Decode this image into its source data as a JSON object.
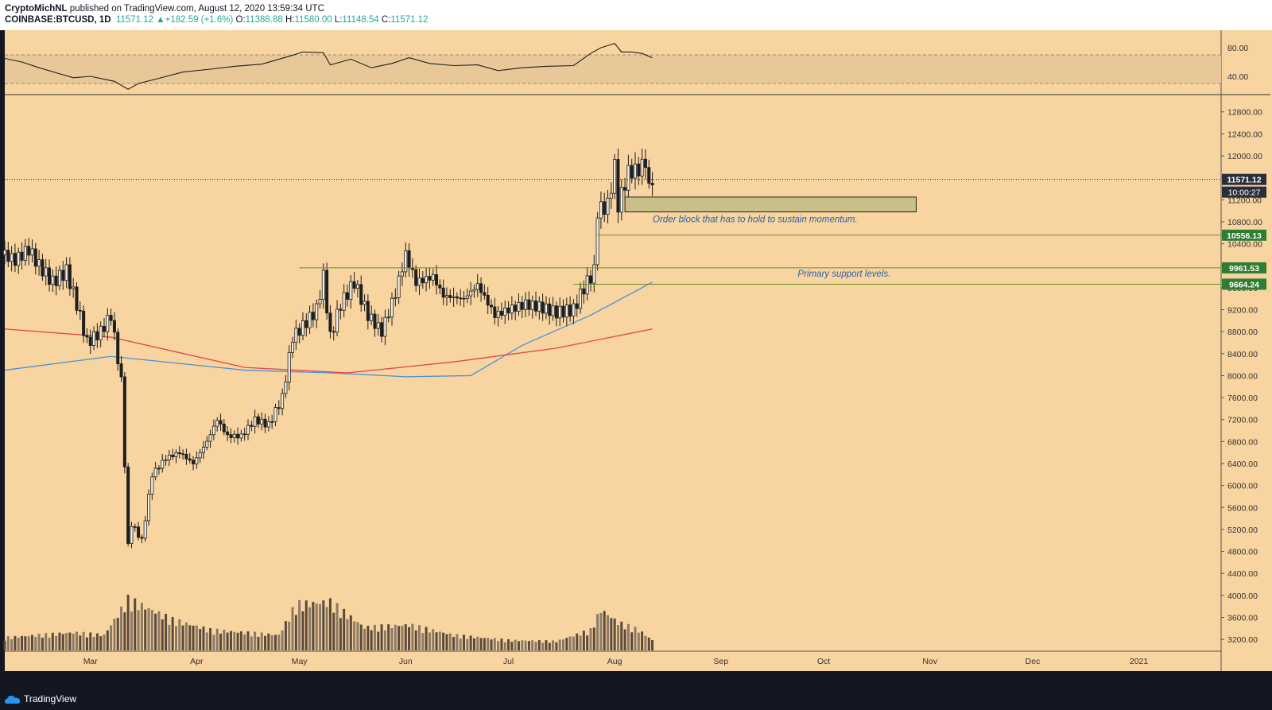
{
  "header": {
    "author": "CryptoMichNL",
    "published": "published on TradingView.com, August 12, 2020 13:59:34 UTC",
    "symbol": "COINBASE:BTCUSD, 1D",
    "last": "11571.12",
    "change": "+182.59 (+1.6%)",
    "open_label": "O:",
    "open": "11388.88",
    "high_label": "H:",
    "high": "11580.00",
    "low_label": "L:",
    "low": "11148.54",
    "close_label": "C:",
    "close": "11571.12"
  },
  "footer": {
    "brand": "TradingView"
  },
  "colors": {
    "background": "#f8d4a0",
    "candle": "#1e1e1e",
    "volume": "#5a4a3a",
    "ma_blue": "#4a90d9",
    "ma_red": "#e04848",
    "support_line": "#6b8e23",
    "badge_green": "#2e7d32",
    "badge_dark": "#2a2e39",
    "order_block": "#c8c088",
    "annotation": "#2962a8"
  },
  "chart_data": {
    "type": "candlestick",
    "symbol": "COINBASE:BTCUSD",
    "interval": "1D",
    "x_ticks": [
      "Mar",
      "Apr",
      "May",
      "Jun",
      "Jul",
      "Aug",
      "Sep",
      "Oct",
      "Nov",
      "Dec",
      "2021"
    ],
    "x_tick_dates": [
      "2020-03-01",
      "2020-04-01",
      "2020-05-01",
      "2020-06-01",
      "2020-07-01",
      "2020-08-01",
      "2020-09-01",
      "2020-10-01",
      "2020-11-01",
      "2020-12-01",
      "2021-01-01"
    ],
    "x_range": [
      "2020-02-05",
      "2021-01-25"
    ],
    "ylim": [
      3000,
      13100
    ],
    "y_ticks": [
      "12800.00",
      "12400.00",
      "12000.00",
      "11600.00",
      "11200.00",
      "10800.00",
      "10400.00",
      "10000.00",
      "9600.00",
      "9200.00",
      "8800.00",
      "8400.00",
      "8000.00",
      "7600.00",
      "7200.00",
      "6800.00",
      "6400.00",
      "6000.00",
      "5600.00",
      "5200.00",
      "4800.00",
      "4400.00",
      "4000.00",
      "3600.00",
      "3200.00"
    ],
    "y_tick_values": [
      12800,
      12400,
      12000,
      11600,
      11200,
      10800,
      10400,
      10000,
      9600,
      9200,
      8800,
      8400,
      8000,
      7600,
      7200,
      6800,
      6400,
      6000,
      5600,
      5200,
      4800,
      4400,
      4000,
      3600,
      3200
    ],
    "price_points": [
      {
        "date": "2020-02-05",
        "price": 10200
      },
      {
        "date": "2020-02-08",
        "price": 10100
      },
      {
        "date": "2020-02-12",
        "price": 10300
      },
      {
        "date": "2020-02-15",
        "price": 10000
      },
      {
        "date": "2020-02-19",
        "price": 9700
      },
      {
        "date": "2020-02-23",
        "price": 9900
      },
      {
        "date": "2020-02-26",
        "price": 9300
      },
      {
        "date": "2020-02-29",
        "price": 8600
      },
      {
        "date": "2020-03-04",
        "price": 8800
      },
      {
        "date": "2020-03-07",
        "price": 9100
      },
      {
        "date": "2020-03-10",
        "price": 7900
      },
      {
        "date": "2020-03-12",
        "price": 4900
      },
      {
        "date": "2020-03-13",
        "price": 5300
      },
      {
        "date": "2020-03-16",
        "price": 5000
      },
      {
        "date": "2020-03-19",
        "price": 6200
      },
      {
        "date": "2020-03-23",
        "price": 6500
      },
      {
        "date": "2020-03-27",
        "price": 6600
      },
      {
        "date": "2020-03-31",
        "price": 6400
      },
      {
        "date": "2020-04-04",
        "price": 6800
      },
      {
        "date": "2020-04-07",
        "price": 7200
      },
      {
        "date": "2020-04-10",
        "price": 6900
      },
      {
        "date": "2020-04-14",
        "price": 6900
      },
      {
        "date": "2020-04-18",
        "price": 7200
      },
      {
        "date": "2020-04-22",
        "price": 7100
      },
      {
        "date": "2020-04-26",
        "price": 7600
      },
      {
        "date": "2020-04-29",
        "price": 8700
      },
      {
        "date": "2020-05-02",
        "price": 8900
      },
      {
        "date": "2020-05-06",
        "price": 9200
      },
      {
        "date": "2020-05-08",
        "price": 9800
      },
      {
        "date": "2020-05-10",
        "price": 8700
      },
      {
        "date": "2020-05-13",
        "price": 9300
      },
      {
        "date": "2020-05-17",
        "price": 9700
      },
      {
        "date": "2020-05-21",
        "price": 9100
      },
      {
        "date": "2020-05-25",
        "price": 8800
      },
      {
        "date": "2020-05-29",
        "price": 9500
      },
      {
        "date": "2020-06-01",
        "price": 10200
      },
      {
        "date": "2020-06-04",
        "price": 9700
      },
      {
        "date": "2020-06-09",
        "price": 9800
      },
      {
        "date": "2020-06-12",
        "price": 9450
      },
      {
        "date": "2020-06-18",
        "price": 9400
      },
      {
        "date": "2020-06-22",
        "price": 9650
      },
      {
        "date": "2020-06-27",
        "price": 9100
      },
      {
        "date": "2020-07-01",
        "price": 9200
      },
      {
        "date": "2020-07-06",
        "price": 9300
      },
      {
        "date": "2020-07-10",
        "price": 9250
      },
      {
        "date": "2020-07-15",
        "price": 9150
      },
      {
        "date": "2020-07-20",
        "price": 9200
      },
      {
        "date": "2020-07-23",
        "price": 9600
      },
      {
        "date": "2020-07-26",
        "price": 9900
      },
      {
        "date": "2020-07-27",
        "price": 11000
      },
      {
        "date": "2020-07-30",
        "price": 11100
      },
      {
        "date": "2020-08-01",
        "price": 11800
      },
      {
        "date": "2020-08-02",
        "price": 11100
      },
      {
        "date": "2020-08-05",
        "price": 11700
      },
      {
        "date": "2020-08-08",
        "price": 11750
      },
      {
        "date": "2020-08-10",
        "price": 11900
      },
      {
        "date": "2020-08-11",
        "price": 11400
      },
      {
        "date": "2020-08-12",
        "price": 11571
      }
    ],
    "moving_averages": [
      {
        "color": "blue",
        "points": [
          {
            "date": "2020-02-05",
            "price": 8100
          },
          {
            "date": "2020-03-07",
            "price": 8350
          },
          {
            "date": "2020-04-15",
            "price": 8100
          },
          {
            "date": "2020-05-10",
            "price": 8050
          },
          {
            "date": "2020-06-01",
            "price": 7980
          },
          {
            "date": "2020-06-20",
            "price": 8000
          },
          {
            "date": "2020-07-05",
            "price": 8550
          },
          {
            "date": "2020-07-25",
            "price": 9100
          },
          {
            "date": "2020-08-12",
            "price": 9700
          }
        ]
      },
      {
        "color": "red",
        "points": [
          {
            "date": "2020-02-05",
            "price": 8850
          },
          {
            "date": "2020-03-07",
            "price": 8700
          },
          {
            "date": "2020-04-15",
            "price": 8150
          },
          {
            "date": "2020-05-15",
            "price": 8050
          },
          {
            "date": "2020-06-15",
            "price": 8250
          },
          {
            "date": "2020-07-15",
            "price": 8500
          },
          {
            "date": "2020-08-12",
            "price": 8850
          }
        ]
      }
    ],
    "horizontal_levels": [
      {
        "price": 11571.12,
        "label": "11571.12",
        "style": "dotted",
        "badge": "dark"
      },
      {
        "price": 10556.13,
        "label": "10556.13",
        "style": "solid",
        "badge": "green",
        "from_date": "2020-07-27"
      },
      {
        "price": 9961.53,
        "label": "9961.53",
        "style": "solid",
        "badge": "green",
        "from_date": "2020-05-01"
      },
      {
        "price": 9664.24,
        "label": "9664.24",
        "style": "solid",
        "badge": "green",
        "from_date": "2020-07-20"
      }
    ],
    "countdown_label": "10:00:27",
    "order_block": {
      "from_date": "2020-08-04",
      "to_date": "2020-10-28",
      "top": 11250,
      "bottom": 10980
    },
    "annotations": [
      {
        "text": "Order block that has to hold to sustain momentum.",
        "date": "2020-09-11",
        "price": 10790
      },
      {
        "text": "Primary support levels.",
        "date": "2020-10-07",
        "price": 9800
      }
    ],
    "rsi": {
      "y_ticks": [
        "80.00",
        "40.00"
      ],
      "y_tick_values": [
        80,
        40
      ],
      "ylim": [
        20,
        100
      ],
      "band": [
        30,
        70
      ],
      "points": [
        {
          "date": "2020-02-05",
          "value": 65
        },
        {
          "date": "2020-02-10",
          "value": 60
        },
        {
          "date": "2020-02-15",
          "value": 52
        },
        {
          "date": "2020-02-20",
          "value": 45
        },
        {
          "date": "2020-02-25",
          "value": 38
        },
        {
          "date": "2020-03-01",
          "value": 40
        },
        {
          "date": "2020-03-08",
          "value": 33
        },
        {
          "date": "2020-03-12",
          "value": 22
        },
        {
          "date": "2020-03-15",
          "value": 30
        },
        {
          "date": "2020-03-20",
          "value": 36
        },
        {
          "date": "2020-03-28",
          "value": 46
        },
        {
          "date": "2020-04-05",
          "value": 50
        },
        {
          "date": "2020-04-12",
          "value": 54
        },
        {
          "date": "2020-04-20",
          "value": 57
        },
        {
          "date": "2020-04-28",
          "value": 68
        },
        {
          "date": "2020-05-02",
          "value": 74
        },
        {
          "date": "2020-05-08",
          "value": 73
        },
        {
          "date": "2020-05-10",
          "value": 56
        },
        {
          "date": "2020-05-16",
          "value": 64
        },
        {
          "date": "2020-05-22",
          "value": 52
        },
        {
          "date": "2020-05-28",
          "value": 58
        },
        {
          "date": "2020-06-02",
          "value": 66
        },
        {
          "date": "2020-06-08",
          "value": 58
        },
        {
          "date": "2020-06-15",
          "value": 55
        },
        {
          "date": "2020-06-22",
          "value": 56
        },
        {
          "date": "2020-06-28",
          "value": 48
        },
        {
          "date": "2020-07-05",
          "value": 52
        },
        {
          "date": "2020-07-12",
          "value": 54
        },
        {
          "date": "2020-07-20",
          "value": 55
        },
        {
          "date": "2020-07-25",
          "value": 72
        },
        {
          "date": "2020-07-28",
          "value": 80
        },
        {
          "date": "2020-08-01",
          "value": 86
        },
        {
          "date": "2020-08-03",
          "value": 74
        },
        {
          "date": "2020-08-06",
          "value": 74
        },
        {
          "date": "2020-08-09",
          "value": 72
        },
        {
          "date": "2020-08-12",
          "value": 66
        }
      ]
    },
    "volume": {
      "points": [
        {
          "date": "2020-02-05",
          "value": 0.25
        },
        {
          "date": "2020-02-15",
          "value": 0.3
        },
        {
          "date": "2020-02-25",
          "value": 0.35
        },
        {
          "date": "2020-03-05",
          "value": 0.3
        },
        {
          "date": "2020-03-12",
          "value": 1.0
        },
        {
          "date": "2020-03-17",
          "value": 0.85
        },
        {
          "date": "2020-03-25",
          "value": 0.6
        },
        {
          "date": "2020-04-05",
          "value": 0.4
        },
        {
          "date": "2020-04-15",
          "value": 0.35
        },
        {
          "date": "2020-04-25",
          "value": 0.3
        },
        {
          "date": "2020-04-30",
          "value": 0.9
        },
        {
          "date": "2020-05-10",
          "value": 0.95
        },
        {
          "date": "2020-05-20",
          "value": 0.45
        },
        {
          "date": "2020-06-02",
          "value": 0.5
        },
        {
          "date": "2020-06-15",
          "value": 0.3
        },
        {
          "date": "2020-07-01",
          "value": 0.2
        },
        {
          "date": "2020-07-15",
          "value": 0.18
        },
        {
          "date": "2020-07-25",
          "value": 0.4
        },
        {
          "date": "2020-07-28",
          "value": 0.8
        },
        {
          "date": "2020-08-02",
          "value": 0.55
        },
        {
          "date": "2020-08-08",
          "value": 0.4
        },
        {
          "date": "2020-08-12",
          "value": 0.2
        }
      ]
    }
  }
}
